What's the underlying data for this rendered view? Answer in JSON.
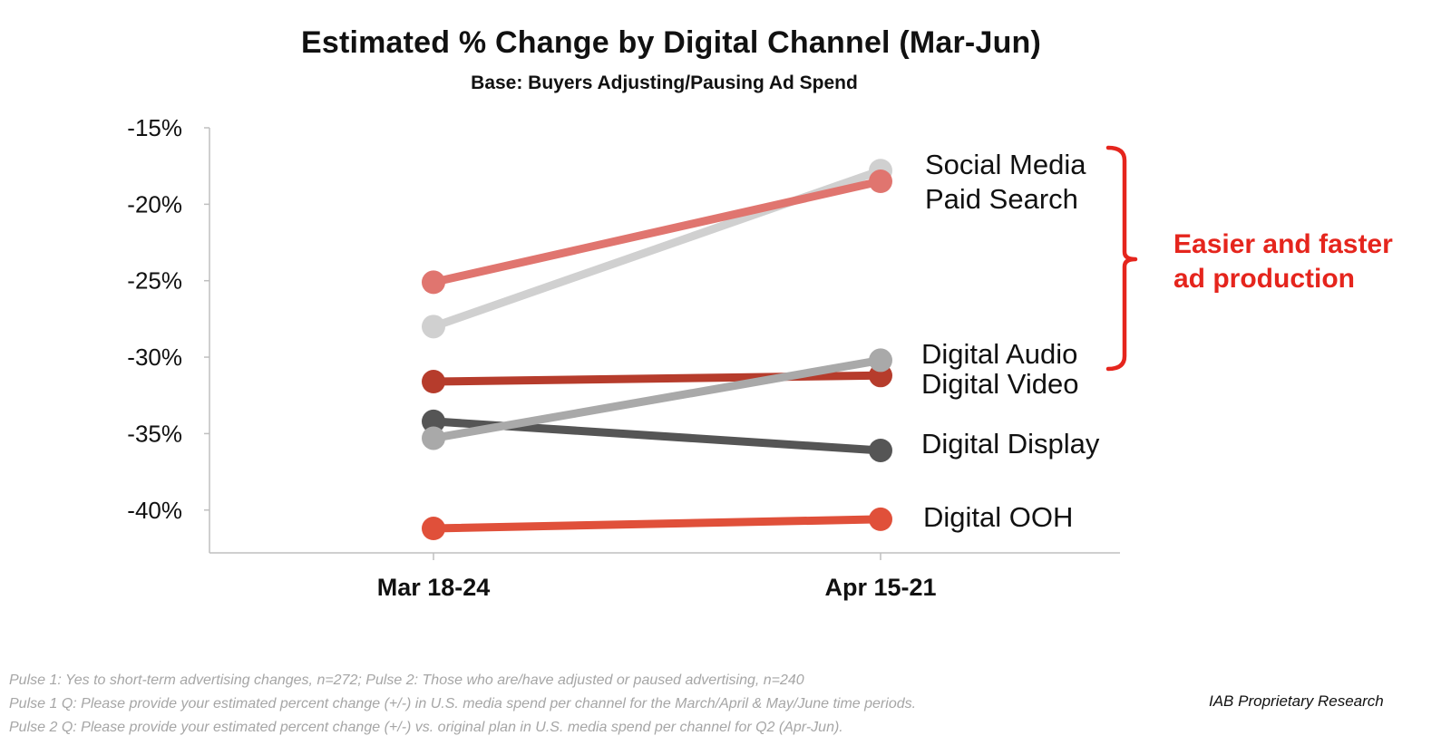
{
  "chart_data": {
    "type": "line",
    "title": "Estimated % Change by Digital Channel (Mar-Jun)",
    "subtitle": "Base:  Buyers Adjusting/Pausing Ad Spend",
    "categories": [
      "Mar 18-24",
      "Apr 15-21"
    ],
    "ylim": [
      -42.8,
      -15
    ],
    "yticks": [
      -15,
      -20,
      -25,
      -30,
      -35,
      -40
    ],
    "ytick_labels": [
      "-15%",
      "-20%",
      "-25%",
      "-30%",
      "-35%",
      "-40%"
    ],
    "grid": false,
    "series": [
      {
        "name": "Social Media",
        "values": [
          -28.0,
          -17.8
        ],
        "color": "#d0d0d0"
      },
      {
        "name": "Paid Search",
        "values": [
          -25.1,
          -18.5
        ],
        "color": "#e0756f"
      },
      {
        "name": "Digital Audio",
        "values": [
          -35.3,
          -30.2
        ],
        "color": "#a9a9a9"
      },
      {
        "name": "Digital Video",
        "values": [
          -31.6,
          -31.2
        ],
        "color": "#b63c2c"
      },
      {
        "name": "Digital Display",
        "values": [
          -34.2,
          -36.1
        ],
        "color": "#555555"
      },
      {
        "name": "Digital OOH",
        "values": [
          -41.2,
          -40.6
        ],
        "color": "#e0503a"
      }
    ],
    "series_draw_order": [
      "Social Media",
      "Paid Search",
      "Digital Video",
      "Digital Display",
      "Digital Audio",
      "Digital OOH"
    ],
    "annotation": {
      "text_lines": [
        "Easier and faster",
        "ad production"
      ],
      "color": "#e5251d",
      "brackets_series": [
        "Social Media",
        "Paid Search",
        "Digital Audio"
      ]
    }
  },
  "footnotes": [
    "Pulse 1: Yes to short-term advertising changes, n=272; Pulse 2: Those who are/have adjusted or paused advertising, n=240",
    "Pulse 1 Q: Please provide your estimated percent change (+/-) in U.S. media spend per channel for the March/April & May/June time periods.",
    "Pulse 2 Q: Please provide your estimated percent change (+/-) vs. original plan in U.S. media spend per channel for Q2 (Apr-Jun)."
  ],
  "source": "IAB Proprietary Research"
}
